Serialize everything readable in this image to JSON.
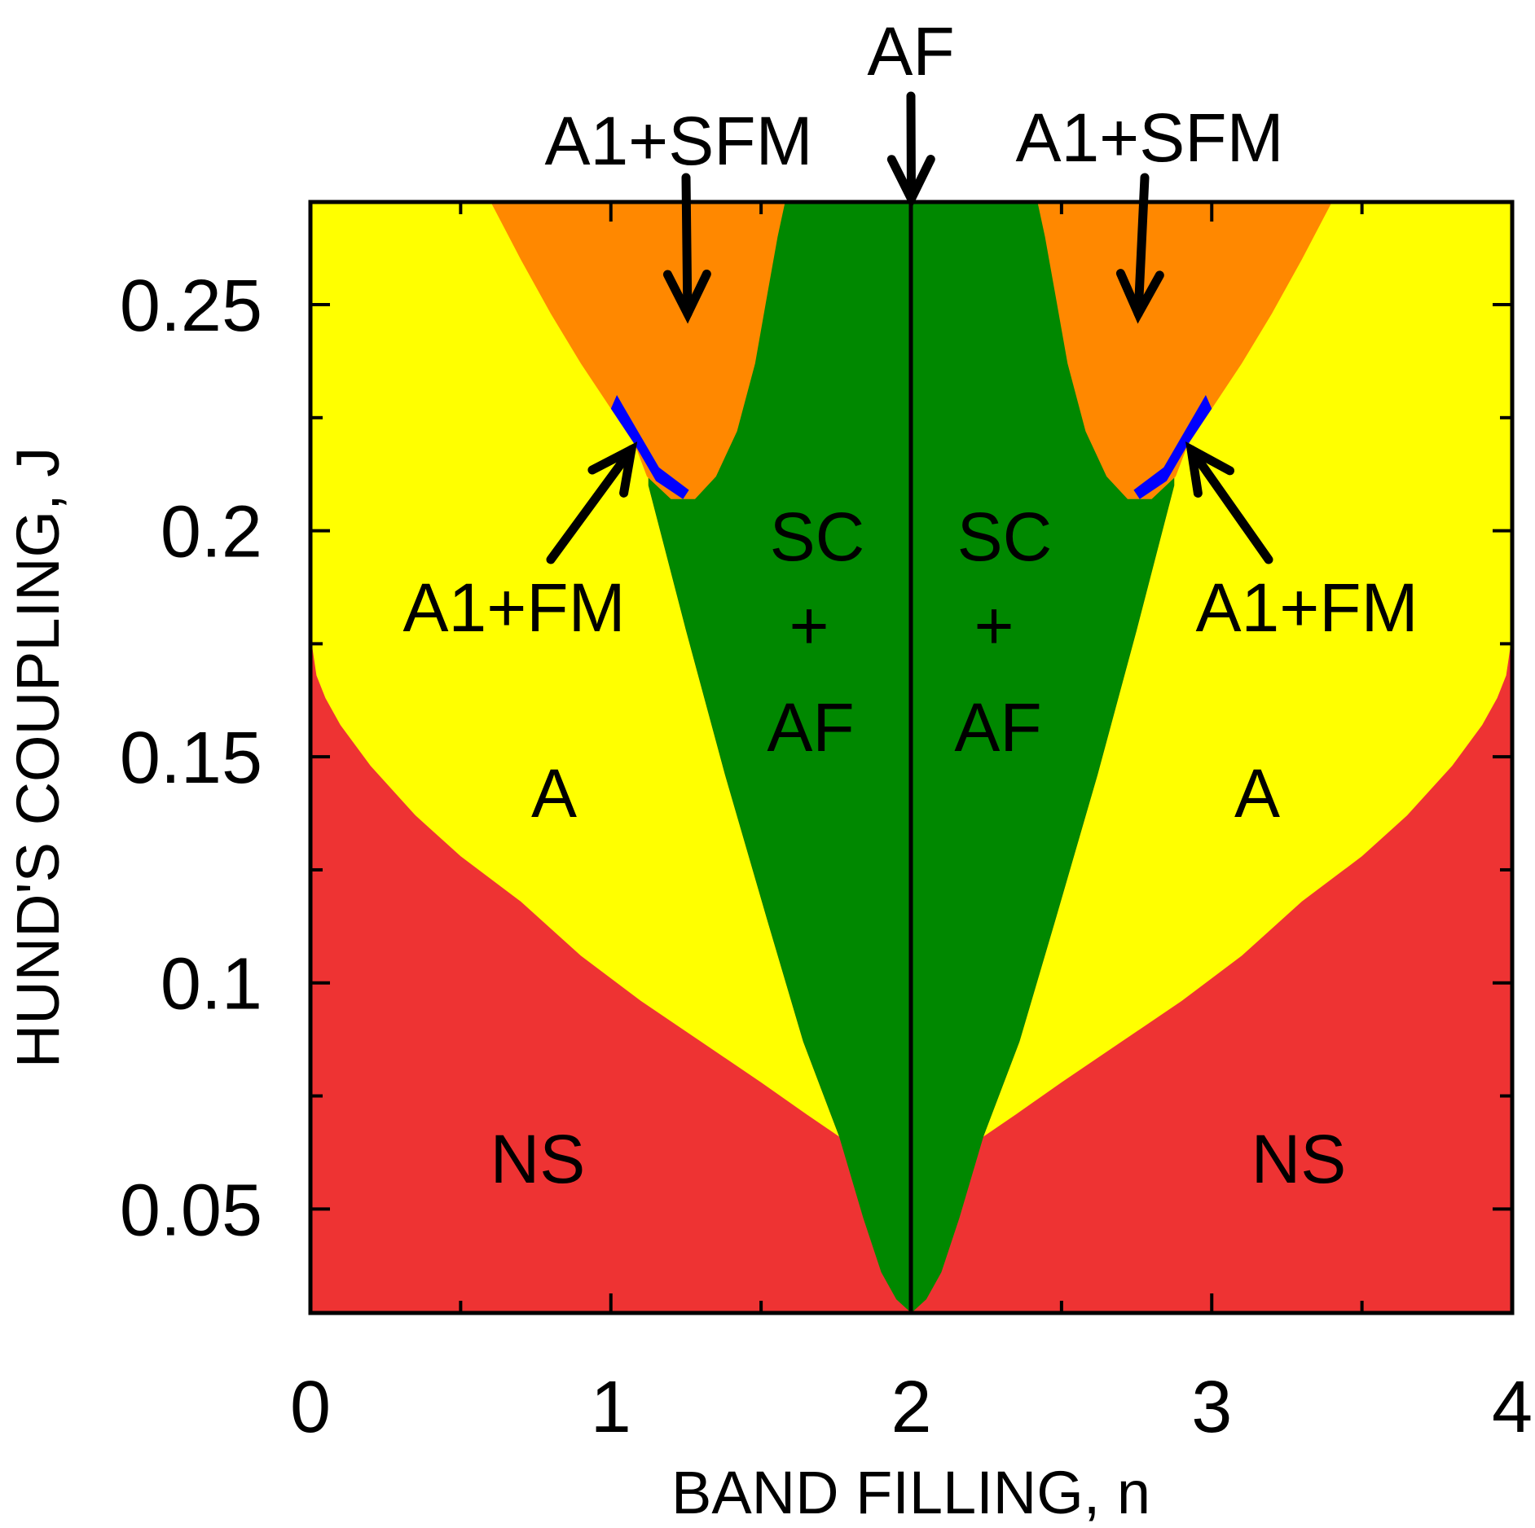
{
  "chart_data": {
    "type": "area",
    "xlabel": "BAND FILLING, n",
    "ylabel": "HUND'S COUPLING, J",
    "xlim": [
      0,
      4
    ],
    "ylim": [
      0.027,
      0.2727
    ],
    "x_ticks": [
      "0",
      "1",
      "2",
      "3",
      "4"
    ],
    "x_tick_values": [
      0,
      1,
      2,
      3,
      4
    ],
    "x_minor_tick_values": [
      0.5,
      1.5,
      2.5,
      3.5
    ],
    "y_ticks": [
      "0.05",
      "0.1",
      "0.15",
      "0.2",
      "0.25"
    ],
    "y_tick_values": [
      0.05,
      0.1,
      0.15,
      0.2,
      0.25
    ],
    "y_minor_tick_values": [
      0.075,
      0.125,
      0.175,
      0.225
    ],
    "grid": false,
    "symmetry_axis": 2,
    "colors": {
      "NS": "#ee3333",
      "A": "#ffff00",
      "A1+SFM": "#ff8800",
      "A1+FM": "#0000ff",
      "SC+AF": "#008800",
      "AF": "#000000"
    },
    "boundaries_left_half": {
      "NS_to_A": {
        "n": [
          0.0,
          0.02,
          0.05,
          0.1,
          0.2,
          0.35,
          0.5,
          0.7,
          0.9,
          1.1,
          1.3,
          1.5,
          1.65,
          1.76
        ],
        "J": [
          0.177,
          0.168,
          0.163,
          0.157,
          0.148,
          0.137,
          0.128,
          0.118,
          0.106,
          0.096,
          0.087,
          0.078,
          0.071,
          0.066
        ]
      },
      "A_to_SC": {
        "n": [
          1.125,
          1.25,
          1.38,
          1.52,
          1.64,
          1.76
        ],
        "J": [
          0.21,
          0.178,
          0.146,
          0.114,
          0.087,
          0.066
        ]
      },
      "NS_to_SC": {
        "n": [
          1.76,
          1.84,
          1.9,
          1.95
        ],
        "J": [
          0.066,
          0.048,
          0.036,
          0.03
        ]
      },
      "A_to_A1SFM": {
        "n": [
          0.6,
          0.7,
          0.8,
          0.9,
          1.0,
          1.05,
          1.08
        ],
        "J": [
          0.2727,
          0.26,
          0.248,
          0.237,
          0.227,
          0.222,
          0.219
        ]
      },
      "A1SFM_bottom": {
        "n": [
          1.28,
          1.35,
          1.42,
          1.48,
          1.52,
          1.555,
          1.58
        ],
        "J": [
          0.207,
          0.212,
          0.222,
          0.237,
          0.252,
          0.265,
          0.2727
        ]
      }
    },
    "callouts": {
      "AF_arrow_tip": {
        "n": 2.0,
        "J": 0.2727
      },
      "A1SFM_left_arrow_tip": {
        "n": 1.25,
        "J": 0.248
      },
      "A1SFM_right_arrow_tip": {
        "n": 2.75,
        "J": 0.248
      },
      "A1FM_left_arrow_tip": {
        "n": 1.06,
        "J": 0.219
      },
      "A1FM_right_arrow_tip": {
        "n": 2.94,
        "J": 0.219
      }
    }
  },
  "labels": {
    "af_top": "AF",
    "a1sfm_left": "A1+SFM",
    "a1sfm_right": "A1+SFM",
    "a1fm_left": "A1+FM",
    "a1fm_right": "A1+FM",
    "sc_left": "SC",
    "plus_left": "+",
    "af_left": "AF",
    "sc_right": "SC",
    "plus_right": "+",
    "af_right": "AF",
    "a_left": "A",
    "a_right": "A",
    "ns_left": "NS",
    "ns_right": "NS"
  }
}
